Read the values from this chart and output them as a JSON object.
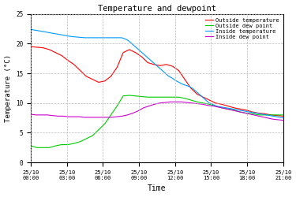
{
  "title": "Temperature and dewpoint",
  "xlabel": "Time",
  "ylabel": "Temperature (°C)",
  "ylim": [
    0,
    25
  ],
  "yticks": [
    0,
    5,
    10,
    15,
    20,
    25
  ],
  "xtick_labels": [
    "25/10\n00:00",
    "25/10\n03:00",
    "25/10\n06:00",
    "25/10\n09:00",
    "25/10\n12:00",
    "25/10\n15:00",
    "25/10\n18:00",
    "25/10\n21:00"
  ],
  "legend_entries": [
    "Outside temperature",
    "Outside dew point",
    "Inside temperature",
    "Inside dew point"
  ],
  "line_colors": [
    "#ff0000",
    "#00cc00",
    "#0099ff",
    "#cc00cc"
  ],
  "background_color": "#ffffff",
  "grid_color": "#bbbbbb",
  "outside_temp": [
    19.5,
    19.4,
    19.3,
    19.0,
    18.5,
    18.0,
    17.2,
    16.5,
    15.5,
    14.5,
    14.0,
    13.5,
    13.7,
    14.5,
    16.0,
    18.5,
    19.0,
    18.5,
    17.8,
    16.8,
    16.5,
    16.3,
    16.5,
    16.2,
    15.5,
    14.0,
    12.5,
    11.5,
    11.0,
    10.5,
    10.0,
    9.8,
    9.5,
    9.2,
    9.0,
    8.8,
    8.5,
    8.3,
    8.2,
    8.0,
    7.9,
    7.8
  ],
  "outside_dew": [
    2.8,
    2.5,
    2.5,
    2.5,
    2.8,
    3.0,
    3.0,
    3.2,
    3.5,
    4.0,
    4.5,
    5.5,
    6.5,
    8.0,
    9.5,
    11.2,
    11.3,
    11.2,
    11.1,
    11.0,
    11.0,
    11.0,
    11.0,
    11.0,
    11.0,
    10.8,
    10.5,
    10.2,
    10.0,
    9.8,
    9.5,
    9.2,
    9.0,
    8.8,
    8.5,
    8.3,
    8.2,
    8.0,
    8.0,
    8.0,
    8.0,
    8.0
  ],
  "inside_temp": [
    22.4,
    22.3,
    22.2,
    22.1,
    22.0,
    21.9,
    21.8,
    21.7,
    21.6,
    21.5,
    21.4,
    21.3,
    21.2,
    21.15,
    21.1,
    21.05,
    21.0,
    21.0,
    21.0,
    21.0,
    21.0,
    21.0,
    21.0,
    21.0,
    21.0,
    21.0,
    21.0,
    21.0,
    20.8,
    20.5,
    20.0,
    19.5,
    19.0,
    18.5,
    18.0,
    17.5,
    17.0,
    16.5,
    16.0,
    15.5,
    15.0,
    14.5,
    14.2,
    13.8,
    13.5,
    13.2,
    13.0,
    12.8,
    12.5,
    12.0,
    11.5,
    11.0,
    10.5,
    10.0,
    9.8,
    9.5,
    9.4,
    9.3,
    9.2,
    9.1,
    9.0,
    8.9,
    8.8,
    8.7,
    8.6,
    8.5,
    8.4,
    8.3,
    8.2,
    8.1,
    8.0,
    7.9,
    7.8,
    7.7,
    7.6,
    7.5
  ],
  "inside_dew": [
    8.1,
    8.0,
    8.0,
    8.0,
    7.9,
    7.8,
    7.8,
    7.7,
    7.7,
    7.7,
    7.6,
    7.6,
    7.6,
    7.6,
    7.6,
    7.6,
    7.7,
    7.8,
    8.0,
    8.3,
    8.7,
    9.2,
    9.5,
    9.8,
    10.0,
    10.1,
    10.2,
    10.2,
    10.2,
    10.1,
    10.0,
    9.9,
    9.8,
    9.6,
    9.5,
    9.3,
    9.1,
    8.9,
    8.7,
    8.5,
    8.3,
    8.1,
    7.9,
    7.7,
    7.5,
    7.3,
    7.2,
    7.1
  ]
}
